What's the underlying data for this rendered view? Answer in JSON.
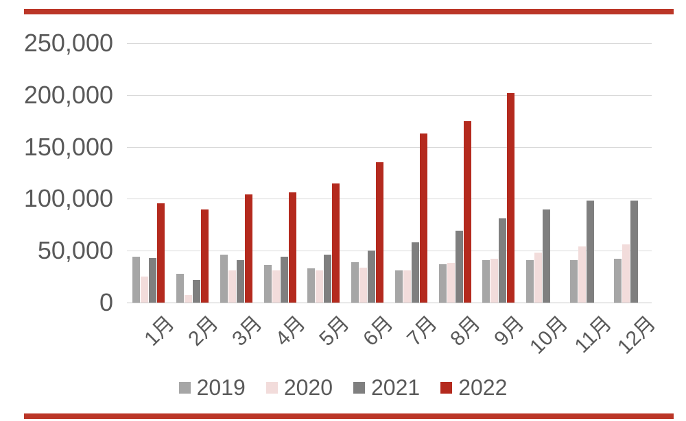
{
  "decor": {
    "top_rule_color": "#bb3627",
    "bottom_rule_color": "#bb3627"
  },
  "chart_data": {
    "type": "bar",
    "title": "",
    "xlabel": "",
    "ylabel": "",
    "ylim": [
      0,
      250000
    ],
    "grid": true,
    "legend_position": "bottom",
    "y_ticks": [
      "250,000",
      "200,000",
      "150,000",
      "100,000",
      "50,000",
      "0"
    ],
    "y_tick_values": [
      250000,
      200000,
      150000,
      100000,
      50000,
      0
    ],
    "categories": [
      "1月",
      "2月",
      "3月",
      "4月",
      "5月",
      "6月",
      "7月",
      "8月",
      "9月",
      "10月",
      "11月",
      "12月"
    ],
    "series": [
      {
        "name": "2019",
        "color": "#a6a6a6",
        "values": [
          44000,
          28000,
          46000,
          36000,
          33000,
          39000,
          31000,
          37000,
          41000,
          41000,
          41000,
          42000
        ]
      },
      {
        "name": "2020",
        "color": "#f2dcdb",
        "values": [
          25000,
          7000,
          31000,
          31000,
          31000,
          34000,
          31000,
          38000,
          42000,
          48000,
          54000,
          56000
        ]
      },
      {
        "name": "2021",
        "color": "#7f7f7f",
        "values": [
          43000,
          22000,
          41000,
          44000,
          46000,
          50000,
          58000,
          69000,
          81000,
          90000,
          98000,
          98000
        ]
      },
      {
        "name": "2022",
        "color": "#b42a1e",
        "values": [
          96000,
          90000,
          104000,
          106000,
          115000,
          135000,
          163000,
          175000,
          202000,
          null,
          null,
          null
        ]
      }
    ]
  }
}
